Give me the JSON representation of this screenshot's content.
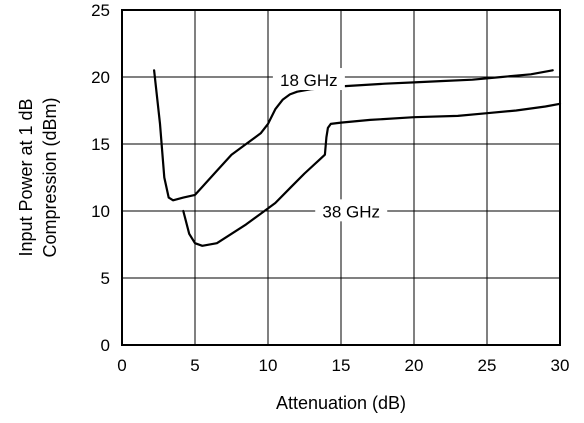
{
  "chart_data": {
    "type": "line",
    "title": "",
    "xlabel": "Attenuation (dB)",
    "ylabel_lines": [
      "Input Power at 1 dB",
      "Compression (dBm)"
    ],
    "xlim": [
      0,
      30
    ],
    "ylim": [
      0,
      25
    ],
    "x_ticks": [
      0,
      5,
      10,
      15,
      20,
      25,
      30
    ],
    "y_ticks": [
      0,
      5,
      10,
      15,
      20,
      25
    ],
    "grid": true,
    "legend": "none",
    "line_color": "#000000",
    "grid_color": "#000000",
    "series": [
      {
        "name": "18 GHz",
        "label_at": [
          12.8,
          19.7
        ],
        "x": [
          2.2,
          2.6,
          2.9,
          3.2,
          3.5,
          4.2,
          5.0,
          5.5,
          6.5,
          7.5,
          8.5,
          9.5,
          10.0,
          10.5,
          11.0,
          11.5,
          12.0,
          13.0,
          15.0,
          18.0,
          20.0,
          22.0,
          24.0,
          26.0,
          28.0,
          29.5
        ],
        "y": [
          20.5,
          16.5,
          12.5,
          11.0,
          10.8,
          11.0,
          11.2,
          11.8,
          13.0,
          14.2,
          15.0,
          15.8,
          16.5,
          17.6,
          18.3,
          18.7,
          18.9,
          19.1,
          19.3,
          19.5,
          19.6,
          19.7,
          19.8,
          20.0,
          20.2,
          20.5
        ]
      },
      {
        "name": "38 GHz",
        "label_at": [
          15.7,
          9.9
        ],
        "x": [
          4.2,
          4.6,
          5.0,
          5.5,
          6.5,
          7.5,
          8.5,
          9.5,
          10.5,
          11.5,
          12.5,
          13.5,
          13.9,
          14.0,
          14.1,
          14.3,
          15.0,
          17.0,
          20.0,
          23.0,
          25.0,
          27.0,
          29.0,
          30.0
        ],
        "y": [
          10.0,
          8.3,
          7.6,
          7.4,
          7.6,
          8.3,
          9.0,
          9.8,
          10.6,
          11.7,
          12.8,
          13.8,
          14.2,
          15.5,
          16.2,
          16.5,
          16.6,
          16.8,
          17.0,
          17.1,
          17.3,
          17.5,
          17.8,
          18.0
        ]
      }
    ]
  }
}
